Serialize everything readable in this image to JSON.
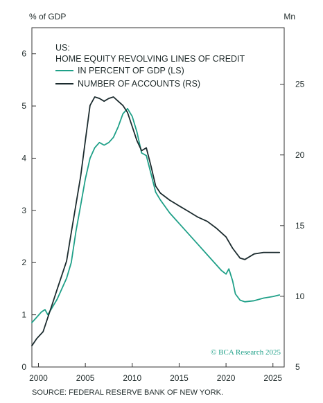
{
  "chart_data": {
    "type": "line",
    "title_lines": [
      "US:",
      "HOME EQUITY REVOLVING LINES OF CREDIT"
    ],
    "ylabel_left": "% of GDP",
    "ylabel_right": "Mn",
    "source": "SOURCE: FEDERAL RESERVE BANK OF NEW YORK.",
    "credit": "© BCA Research 2025",
    "xlim": [
      1999.3,
      2026.2
    ],
    "ylim_left": [
      0,
      6.5
    ],
    "ylim_right": [
      5,
      29
    ],
    "x_ticks": [
      2000,
      2005,
      2010,
      2015,
      2020,
      2025
    ],
    "y_ticks_left": [
      0,
      1,
      2,
      3,
      4,
      5,
      6
    ],
    "y_ticks_right": [
      5,
      10,
      15,
      20,
      25
    ],
    "colors": {
      "gdp": "#1fa088",
      "accounts": "#1b2b2e",
      "text": "#1f2a2a",
      "axis": "#333333"
    },
    "series": [
      {
        "name": "IN PERCENT OF GDP (LS)",
        "axis": "left",
        "color": "#1fa088",
        "points": [
          [
            1999.3,
            0.85
          ],
          [
            1999.8,
            0.95
          ],
          [
            2000.3,
            1.05
          ],
          [
            2000.7,
            1.1
          ],
          [
            2001.0,
            1.0
          ],
          [
            2001.5,
            1.15
          ],
          [
            2002.0,
            1.3
          ],
          [
            2002.5,
            1.5
          ],
          [
            2003.0,
            1.7
          ],
          [
            2003.5,
            2.0
          ],
          [
            2004.0,
            2.6
          ],
          [
            2004.5,
            3.1
          ],
          [
            2005.0,
            3.6
          ],
          [
            2005.5,
            4.0
          ],
          [
            2006.0,
            4.2
          ],
          [
            2006.5,
            4.3
          ],
          [
            2007.0,
            4.25
          ],
          [
            2007.5,
            4.3
          ],
          [
            2008.0,
            4.4
          ],
          [
            2008.5,
            4.6
          ],
          [
            2009.0,
            4.85
          ],
          [
            2009.5,
            4.95
          ],
          [
            2010.0,
            4.8
          ],
          [
            2010.5,
            4.5
          ],
          [
            2011.0,
            4.1
          ],
          [
            2011.5,
            4.05
          ],
          [
            2012.0,
            3.7
          ],
          [
            2012.5,
            3.35
          ],
          [
            2013.0,
            3.2
          ],
          [
            2014.0,
            2.95
          ],
          [
            2015.0,
            2.75
          ],
          [
            2016.0,
            2.55
          ],
          [
            2017.0,
            2.35
          ],
          [
            2018.0,
            2.15
          ],
          [
            2019.0,
            1.95
          ],
          [
            2019.5,
            1.85
          ],
          [
            2020.0,
            1.78
          ],
          [
            2020.3,
            1.88
          ],
          [
            2020.7,
            1.65
          ],
          [
            2021.0,
            1.4
          ],
          [
            2021.5,
            1.28
          ],
          [
            2022.0,
            1.25
          ],
          [
            2023.0,
            1.27
          ],
          [
            2024.0,
            1.32
          ],
          [
            2025.0,
            1.35
          ],
          [
            2025.7,
            1.38
          ]
        ]
      },
      {
        "name": "NUMBER OF ACCOUNTS (RS)",
        "axis": "right",
        "color": "#1b2b2e",
        "points": [
          [
            1999.3,
            6.5
          ],
          [
            1999.8,
            7.0
          ],
          [
            2000.5,
            7.5
          ],
          [
            2001.0,
            8.5
          ],
          [
            2001.5,
            9.5
          ],
          [
            2002.0,
            10.5
          ],
          [
            2002.5,
            11.5
          ],
          [
            2003.0,
            12.5
          ],
          [
            2003.5,
            14.5
          ],
          [
            2004.0,
            16.5
          ],
          [
            2004.5,
            18.5
          ],
          [
            2005.0,
            21.0
          ],
          [
            2005.5,
            23.5
          ],
          [
            2006.0,
            24.1
          ],
          [
            2006.5,
            24.0
          ],
          [
            2007.0,
            23.8
          ],
          [
            2007.5,
            24.0
          ],
          [
            2008.0,
            24.1
          ],
          [
            2008.5,
            23.8
          ],
          [
            2009.0,
            23.5
          ],
          [
            2009.5,
            23.0
          ],
          [
            2010.0,
            22.0
          ],
          [
            2010.5,
            21.0
          ],
          [
            2011.0,
            20.3
          ],
          [
            2011.5,
            20.5
          ],
          [
            2012.0,
            19.2
          ],
          [
            2012.5,
            17.8
          ],
          [
            2013.0,
            17.3
          ],
          [
            2014.0,
            16.8
          ],
          [
            2015.0,
            16.4
          ],
          [
            2016.0,
            16.0
          ],
          [
            2017.0,
            15.6
          ],
          [
            2018.0,
            15.3
          ],
          [
            2019.0,
            14.8
          ],
          [
            2020.0,
            14.2
          ],
          [
            2020.7,
            13.4
          ],
          [
            2021.5,
            12.7
          ],
          [
            2022.0,
            12.6
          ],
          [
            2023.0,
            13.0
          ],
          [
            2024.0,
            13.1
          ],
          [
            2025.0,
            13.1
          ],
          [
            2025.7,
            13.1
          ]
        ]
      }
    ]
  }
}
